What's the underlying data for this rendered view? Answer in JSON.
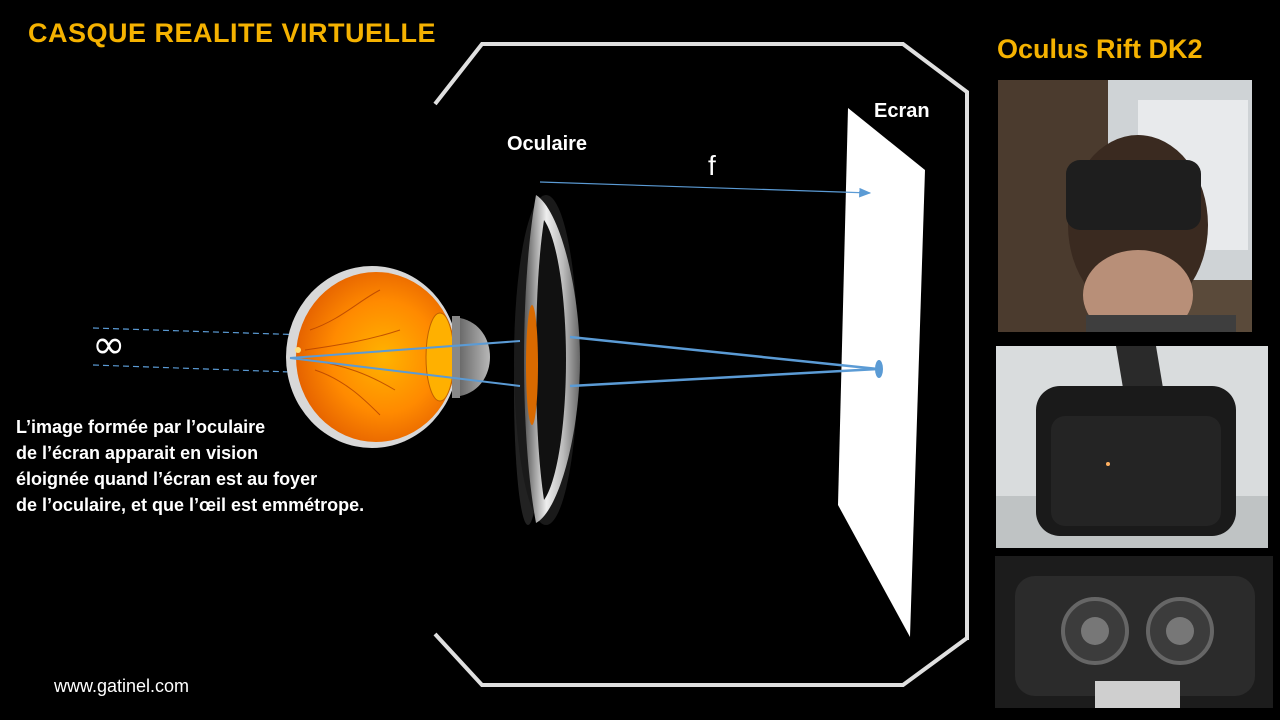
{
  "title": "CASQUE REALITE VIRTUELLE",
  "device_name": "Oculus Rift DK2",
  "labels": {
    "eyepiece": "Oculaire",
    "screen": "Ecran",
    "focal_length": "f",
    "infinity": "∞"
  },
  "caption_lines": [
    "L’image formée par l’oculaire",
    "de l’écran apparait en vision",
    "éloignée quand l’écran est au foyer",
    "de l’oculaire, et que l’œil est emmétrope."
  ],
  "website": "www.gatinel.com",
  "colors": {
    "title": "#f5b200",
    "rays": "#5b9bd5",
    "text": "#ffffff",
    "background": "#000000"
  },
  "photos": [
    "person-wearing-vr-headset",
    "vr-headset-front-view",
    "vr-headset-lenses-inside"
  ]
}
